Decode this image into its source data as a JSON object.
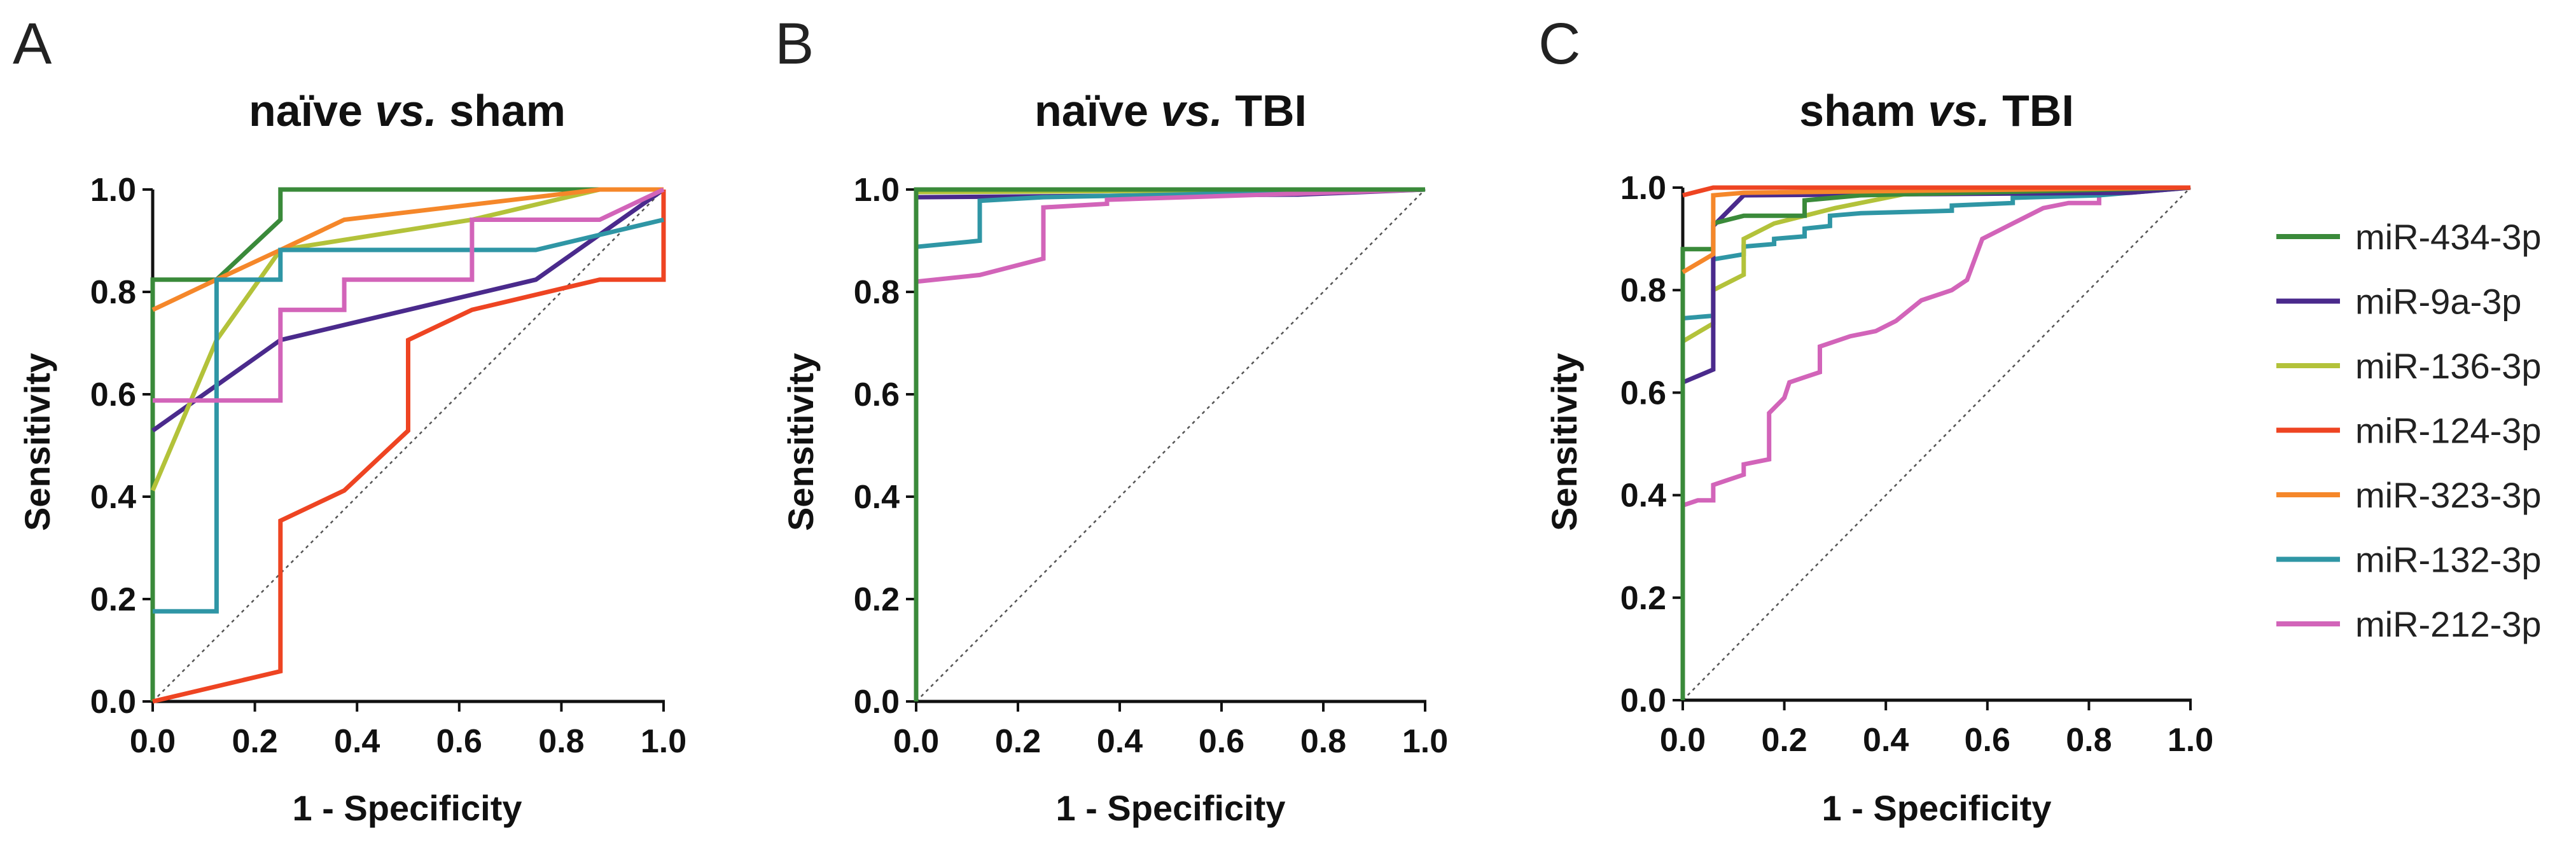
{
  "figure": {
    "legend_position": "right"
  },
  "legend": [
    {
      "label": "miR-434-3p",
      "color": "#3a8a3a"
    },
    {
      "label": "miR-9a-3p",
      "color": "#4a2a8c"
    },
    {
      "label": "miR-136-3p",
      "color": "#b3c23a"
    },
    {
      "label": "miR-124-3p",
      "color": "#ee4422"
    },
    {
      "label": "miR-323-3p",
      "color": "#f5872a"
    },
    {
      "label": "miR-132-3p",
      "color": "#2f96a5"
    },
    {
      "label": "miR-212-3p",
      "color": "#d264b9"
    }
  ],
  "chart_data": [
    {
      "type": "line",
      "panel_label": "A",
      "title_parts": [
        "naïve ",
        "vs.",
        " sham"
      ],
      "xlabel": "1 - Specificity",
      "ylabel": "Sensitivity",
      "xlim": [
        0,
        1
      ],
      "ylim": [
        0,
        1
      ],
      "xticks": [
        "0.0",
        "0.2",
        "0.4",
        "0.6",
        "0.8",
        "1.0"
      ],
      "yticks": [
        "0.0",
        "0.2",
        "0.4",
        "0.6",
        "0.8",
        "1.0"
      ],
      "diagonal": true,
      "series": [
        {
          "name": "miR-434-3p",
          "color": "#3a8a3a",
          "points": [
            [
              0,
              0
            ],
            [
              0,
              0.824
            ],
            [
              0.125,
              0.824
            ],
            [
              0.25,
              0.941
            ],
            [
              0.25,
              1
            ],
            [
              1,
              1
            ]
          ]
        },
        {
          "name": "miR-9a-3p",
          "color": "#4a2a8c",
          "points": [
            [
              0,
              0.529
            ],
            [
              0.25,
              0.706
            ],
            [
              0.75,
              0.824
            ],
            [
              1,
              1
            ]
          ]
        },
        {
          "name": "miR-136-3p",
          "color": "#b3c23a",
          "points": [
            [
              0,
              0.412
            ],
            [
              0.125,
              0.706
            ],
            [
              0.25,
              0.882
            ],
            [
              0.625,
              0.941
            ],
            [
              0.875,
              1
            ],
            [
              1,
              1
            ]
          ]
        },
        {
          "name": "miR-124-3p",
          "color": "#ee4422",
          "points": [
            [
              0,
              0
            ],
            [
              0.25,
              0.059
            ],
            [
              0.25,
              0.353
            ],
            [
              0.375,
              0.412
            ],
            [
              0.5,
              0.529
            ],
            [
              0.5,
              0.706
            ],
            [
              0.625,
              0.765
            ],
            [
              0.875,
              0.824
            ],
            [
              1,
              0.824
            ],
            [
              1,
              1
            ]
          ]
        },
        {
          "name": "miR-323-3p",
          "color": "#f5872a",
          "points": [
            [
              0,
              0.765
            ],
            [
              0.125,
              0.824
            ],
            [
              0.25,
              0.882
            ],
            [
              0.375,
              0.941
            ],
            [
              0.875,
              1
            ],
            [
              1,
              1
            ]
          ]
        },
        {
          "name": "miR-132-3p",
          "color": "#2f96a5",
          "points": [
            [
              0,
              0.176
            ],
            [
              0.125,
              0.176
            ],
            [
              0.125,
              0.824
            ],
            [
              0.25,
              0.824
            ],
            [
              0.25,
              0.882
            ],
            [
              0.75,
              0.882
            ],
            [
              1,
              0.941
            ]
          ]
        },
        {
          "name": "miR-212-3p",
          "color": "#d264b9",
          "points": [
            [
              0,
              0.588
            ],
            [
              0.25,
              0.588
            ],
            [
              0.25,
              0.765
            ],
            [
              0.375,
              0.765
            ],
            [
              0.375,
              0.824
            ],
            [
              0.625,
              0.824
            ],
            [
              0.625,
              0.941
            ],
            [
              0.875,
              0.941
            ],
            [
              1,
              1
            ]
          ]
        }
      ]
    },
    {
      "type": "line",
      "panel_label": "B",
      "title_parts": [
        "naïve ",
        "vs.",
        " TBI"
      ],
      "xlabel": "1 - Specificity",
      "ylabel": "Sensitivity",
      "xlim": [
        0,
        1
      ],
      "ylim": [
        0,
        1
      ],
      "xticks": [
        "0.0",
        "0.2",
        "0.4",
        "0.6",
        "0.8",
        "1.0"
      ],
      "yticks": [
        "0.0",
        "0.2",
        "0.4",
        "0.6",
        "0.8",
        "1.0"
      ],
      "diagonal": true,
      "series": [
        {
          "name": "miR-9a-3p",
          "color": "#4a2a8c",
          "points": [
            [
              0,
              0.985
            ],
            [
              0.75,
              0.99
            ],
            [
              1,
              1
            ]
          ]
        },
        {
          "name": "miR-136-3p",
          "color": "#b3c23a",
          "points": [
            [
              0,
              0.995
            ],
            [
              1,
              1
            ]
          ]
        },
        {
          "name": "miR-124-3p",
          "color": "#ee4422",
          "points": [
            [
              0,
              1
            ],
            [
              1,
              1
            ]
          ]
        },
        {
          "name": "miR-323-3p",
          "color": "#f5872a",
          "points": [
            [
              0,
              1
            ],
            [
              1,
              1
            ]
          ]
        },
        {
          "name": "miR-132-3p",
          "color": "#2f96a5",
          "points": [
            [
              0,
              0.888
            ],
            [
              0.125,
              0.9
            ],
            [
              0.125,
              0.978
            ],
            [
              0.25,
              0.985
            ],
            [
              1,
              1
            ]
          ]
        },
        {
          "name": "miR-212-3p",
          "color": "#d264b9",
          "points": [
            [
              0,
              0.82
            ],
            [
              0.125,
              0.833
            ],
            [
              0.25,
              0.865
            ],
            [
              0.25,
              0.965
            ],
            [
              0.375,
              0.972
            ],
            [
              0.375,
              0.98
            ],
            [
              1,
              1
            ]
          ]
        },
        {
          "name": "miR-434-3p",
          "color": "#3a8a3a",
          "points": [
            [
              0,
              0
            ],
            [
              0,
              1
            ],
            [
              1,
              1
            ]
          ]
        }
      ]
    },
    {
      "type": "line",
      "panel_label": "C",
      "title_parts": [
        "sham ",
        "vs.",
        " TBI"
      ],
      "xlabel": "1 - Specificity",
      "ylabel": "Sensitivity",
      "xlim": [
        0,
        1
      ],
      "ylim": [
        0,
        1
      ],
      "xticks": [
        "0.0",
        "0.2",
        "0.4",
        "0.6",
        "0.8",
        "1.0"
      ],
      "yticks": [
        "0.0",
        "0.2",
        "0.4",
        "0.6",
        "0.8",
        "1.0"
      ],
      "diagonal": true,
      "series": [
        {
          "name": "miR-212-3p",
          "color": "#d264b9",
          "points": [
            [
              0,
              0.38
            ],
            [
              0.03,
              0.39
            ],
            [
              0.06,
              0.39
            ],
            [
              0.06,
              0.42
            ],
            [
              0.09,
              0.43
            ],
            [
              0.12,
              0.44
            ],
            [
              0.12,
              0.46
            ],
            [
              0.17,
              0.47
            ],
            [
              0.17,
              0.56
            ],
            [
              0.2,
              0.59
            ],
            [
              0.21,
              0.62
            ],
            [
              0.24,
              0.63
            ],
            [
              0.27,
              0.64
            ],
            [
              0.27,
              0.69
            ],
            [
              0.33,
              0.71
            ],
            [
              0.38,
              0.72
            ],
            [
              0.42,
              0.74
            ],
            [
              0.47,
              0.78
            ],
            [
              0.53,
              0.8
            ],
            [
              0.56,
              0.82
            ],
            [
              0.59,
              0.9
            ],
            [
              0.65,
              0.93
            ],
            [
              0.71,
              0.96
            ],
            [
              0.76,
              0.97
            ],
            [
              0.82,
              0.97
            ],
            [
              0.82,
              0.99
            ],
            [
              1,
              1
            ]
          ]
        },
        {
          "name": "miR-132-3p",
          "color": "#2f96a5",
          "points": [
            [
              0,
              0.745
            ],
            [
              0.06,
              0.75
            ],
            [
              0.06,
              0.86
            ],
            [
              0.12,
              0.87
            ],
            [
              0.12,
              0.885
            ],
            [
              0.18,
              0.89
            ],
            [
              0.18,
              0.9
            ],
            [
              0.24,
              0.905
            ],
            [
              0.24,
              0.92
            ],
            [
              0.29,
              0.925
            ],
            [
              0.29,
              0.945
            ],
            [
              0.35,
              0.95
            ],
            [
              0.53,
              0.955
            ],
            [
              0.53,
              0.965
            ],
            [
              0.65,
              0.97
            ],
            [
              0.65,
              0.98
            ],
            [
              0.82,
              0.985
            ],
            [
              1,
              1
            ]
          ]
        },
        {
          "name": "miR-136-3p",
          "color": "#b3c23a",
          "points": [
            [
              0,
              0.7
            ],
            [
              0.06,
              0.735
            ],
            [
              0.06,
              0.8
            ],
            [
              0.12,
              0.83
            ],
            [
              0.12,
              0.9
            ],
            [
              0.18,
              0.93
            ],
            [
              0.3,
              0.96
            ],
            [
              0.45,
              0.99
            ],
            [
              1,
              1
            ]
          ]
        },
        {
          "name": "miR-9a-3p",
          "color": "#4a2a8c",
          "points": [
            [
              0,
              0.62
            ],
            [
              0.06,
              0.645
            ],
            [
              0.06,
              0.925
            ],
            [
              0.12,
              0.985
            ],
            [
              0.88,
              0.99
            ],
            [
              1,
              1
            ]
          ]
        },
        {
          "name": "miR-434-3p",
          "color": "#3a8a3a",
          "points": [
            [
              0,
              0
            ],
            [
              0,
              0.88
            ],
            [
              0.06,
              0.88
            ],
            [
              0.06,
              0.93
            ],
            [
              0.12,
              0.945
            ],
            [
              0.24,
              0.945
            ],
            [
              0.24,
              0.975
            ],
            [
              0.35,
              0.985
            ],
            [
              1,
              1
            ]
          ]
        },
        {
          "name": "miR-323-3p",
          "color": "#f5872a",
          "points": [
            [
              0,
              0.835
            ],
            [
              0.06,
              0.87
            ],
            [
              0.06,
              0.985
            ],
            [
              0.12,
              0.99
            ],
            [
              1,
              1
            ]
          ]
        },
        {
          "name": "miR-124-3p",
          "color": "#ee4422",
          "points": [
            [
              0,
              0.985
            ],
            [
              0.06,
              1
            ],
            [
              1,
              1
            ]
          ]
        }
      ]
    }
  ]
}
